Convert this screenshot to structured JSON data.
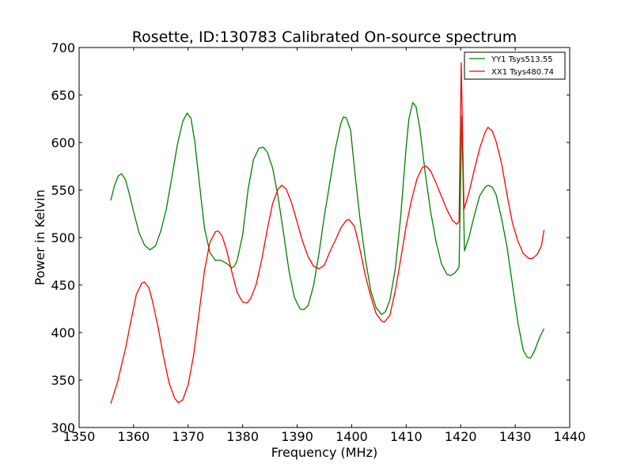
{
  "chart_data": {
    "type": "line",
    "title": "Rosette, ID:130783 Calibrated On-source spectrum",
    "xlabel": "Frequency (MHz)",
    "ylabel": "Power in Kelvin",
    "xlim": [
      1350,
      1440
    ],
    "ylim": [
      300,
      700
    ],
    "xticks": [
      1350,
      1360,
      1370,
      1380,
      1390,
      1400,
      1410,
      1420,
      1430,
      1440
    ],
    "yticks": [
      300,
      350,
      400,
      450,
      500,
      550,
      600,
      650,
      700
    ],
    "grid": false,
    "legend_position": "top-right",
    "series": [
      {
        "name": "YY1 Tsys513.55",
        "color": "#008000",
        "points": [
          [
            1355.8,
            539
          ],
          [
            1356.5,
            555
          ],
          [
            1357.2,
            565
          ],
          [
            1357.8,
            567
          ],
          [
            1358.5,
            561
          ],
          [
            1359.2,
            546
          ],
          [
            1360,
            527
          ],
          [
            1361,
            505
          ],
          [
            1362,
            492
          ],
          [
            1363,
            487
          ],
          [
            1364,
            491
          ],
          [
            1365,
            507
          ],
          [
            1366,
            530
          ],
          [
            1367,
            563
          ],
          [
            1368,
            597
          ],
          [
            1369,
            622
          ],
          [
            1369.8,
            631
          ],
          [
            1370.5,
            626
          ],
          [
            1371.2,
            602
          ],
          [
            1372,
            560
          ],
          [
            1373,
            510
          ],
          [
            1374,
            484
          ],
          [
            1375,
            476
          ],
          [
            1376,
            476
          ],
          [
            1377,
            473
          ],
          [
            1378,
            468
          ],
          [
            1378.5,
            470
          ],
          [
            1379,
            476
          ],
          [
            1380,
            503
          ],
          [
            1381,
            551
          ],
          [
            1382,
            582
          ],
          [
            1383,
            594
          ],
          [
            1383.8,
            595
          ],
          [
            1384.5,
            590
          ],
          [
            1385.5,
            573
          ],
          [
            1386.5,
            543
          ],
          [
            1387.5,
            505
          ],
          [
            1388.5,
            465
          ],
          [
            1389.5,
            437
          ],
          [
            1390.5,
            425
          ],
          [
            1391.2,
            424
          ],
          [
            1392,
            428
          ],
          [
            1393,
            449
          ],
          [
            1394,
            483
          ],
          [
            1395,
            523
          ],
          [
            1396,
            558
          ],
          [
            1397,
            593
          ],
          [
            1398,
            620
          ],
          [
            1398.5,
            627
          ],
          [
            1399,
            626
          ],
          [
            1399.8,
            613
          ],
          [
            1400.5,
            573
          ],
          [
            1401.5,
            521
          ],
          [
            1402.5,
            478
          ],
          [
            1403.5,
            444
          ],
          [
            1404.5,
            426
          ],
          [
            1405.5,
            419
          ],
          [
            1406.2,
            422
          ],
          [
            1407,
            434
          ],
          [
            1408,
            467
          ],
          [
            1409,
            522
          ],
          [
            1410,
            595
          ],
          [
            1410.5,
            625
          ],
          [
            1411.2,
            642
          ],
          [
            1411.8,
            638
          ],
          [
            1412.5,
            615
          ],
          [
            1413.5,
            568
          ],
          [
            1414.5,
            527
          ],
          [
            1415.5,
            495
          ],
          [
            1416.5,
            472
          ],
          [
            1417.5,
            461
          ],
          [
            1418.2,
            460
          ],
          [
            1419,
            463
          ],
          [
            1419.7,
            469
          ],
          [
            1420.2,
            628
          ],
          [
            1420.7,
            486
          ],
          [
            1421.5,
            500
          ],
          [
            1422.5,
            523
          ],
          [
            1423.5,
            544
          ],
          [
            1424.5,
            553
          ],
          [
            1425,
            555
          ],
          [
            1425.8,
            553
          ],
          [
            1426.5,
            545
          ],
          [
            1427.5,
            520
          ],
          [
            1428.5,
            490
          ],
          [
            1429.5,
            450
          ],
          [
            1430.5,
            410
          ],
          [
            1431.5,
            381
          ],
          [
            1432.2,
            374
          ],
          [
            1432.8,
            373
          ],
          [
            1433.5,
            380
          ],
          [
            1434.5,
            395
          ],
          [
            1435.3,
            404
          ]
        ]
      },
      {
        "name": "XX1 Tsys480.74",
        "color": "#ff0000",
        "points": [
          [
            1355.8,
            325
          ],
          [
            1357,
            347
          ],
          [
            1358.5,
            383
          ],
          [
            1359.5,
            412
          ],
          [
            1360.5,
            440
          ],
          [
            1361.5,
            452
          ],
          [
            1362,
            453
          ],
          [
            1362.8,
            447
          ],
          [
            1363.5,
            432
          ],
          [
            1364.5,
            405
          ],
          [
            1365.5,
            374
          ],
          [
            1366.5,
            347
          ],
          [
            1367.5,
            331
          ],
          [
            1368.2,
            326
          ],
          [
            1369,
            329
          ],
          [
            1370,
            345
          ],
          [
            1371,
            376
          ],
          [
            1372,
            421
          ],
          [
            1373,
            465
          ],
          [
            1374,
            495
          ],
          [
            1375,
            506
          ],
          [
            1375.5,
            507
          ],
          [
            1376.2,
            502
          ],
          [
            1377,
            488
          ],
          [
            1378,
            464
          ],
          [
            1379,
            442
          ],
          [
            1380,
            432
          ],
          [
            1380.8,
            431
          ],
          [
            1381.5,
            436
          ],
          [
            1382.5,
            451
          ],
          [
            1383.5,
            477
          ],
          [
            1384.5,
            508
          ],
          [
            1385.5,
            536
          ],
          [
            1386.5,
            551
          ],
          [
            1387.2,
            555
          ],
          [
            1388,
            551
          ],
          [
            1389,
            536
          ],
          [
            1390,
            516
          ],
          [
            1391,
            496
          ],
          [
            1392,
            480
          ],
          [
            1393,
            470
          ],
          [
            1394,
            467
          ],
          [
            1395,
            471
          ],
          [
            1396,
            485
          ],
          [
            1397,
            497
          ],
          [
            1398,
            510
          ],
          [
            1399,
            518
          ],
          [
            1399.5,
            519
          ],
          [
            1400.5,
            512
          ],
          [
            1401.5,
            488
          ],
          [
            1402.5,
            460
          ],
          [
            1403.5,
            438
          ],
          [
            1404.5,
            420
          ],
          [
            1405.5,
            412
          ],
          [
            1406,
            411
          ],
          [
            1407,
            418
          ],
          [
            1408,
            444
          ],
          [
            1409,
            477
          ],
          [
            1410,
            512
          ],
          [
            1411,
            540
          ],
          [
            1412,
            562
          ],
          [
            1413,
            574
          ],
          [
            1413.7,
            575
          ],
          [
            1414.5,
            570
          ],
          [
            1415.5,
            557
          ],
          [
            1416.5,
            543
          ],
          [
            1417.5,
            529
          ],
          [
            1418.5,
            518
          ],
          [
            1419.3,
            514
          ],
          [
            1419.7,
            517
          ],
          [
            1420.1,
            684
          ],
          [
            1420.6,
            530
          ],
          [
            1421.5,
            547
          ],
          [
            1422.5,
            571
          ],
          [
            1423.5,
            594
          ],
          [
            1424.5,
            611
          ],
          [
            1425,
            616
          ],
          [
            1425.8,
            612
          ],
          [
            1426.5,
            601
          ],
          [
            1427.5,
            578
          ],
          [
            1428.5,
            545
          ],
          [
            1429.5,
            515
          ],
          [
            1430.5,
            496
          ],
          [
            1431.5,
            483
          ],
          [
            1432.5,
            478
          ],
          [
            1433.2,
            478
          ],
          [
            1434,
            482
          ],
          [
            1434.8,
            491
          ],
          [
            1435.3,
            508
          ]
        ]
      }
    ]
  }
}
